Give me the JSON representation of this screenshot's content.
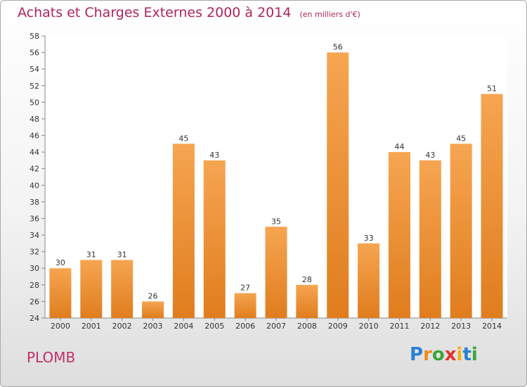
{
  "header": {
    "title": "Achats et Charges Externes 2000 à 2014",
    "subtitle": "(en milliers d'€)"
  },
  "footer": {
    "commune": "PLOMB",
    "brand": "Proxiti"
  },
  "colors": {
    "bar_top": "#f6a551",
    "bar_bottom": "#e07d1e",
    "title": "#b0245a"
  },
  "chart_data": {
    "type": "bar",
    "title": "Achats et Charges Externes 2000 à 2014",
    "subtitle": "(en milliers d'€)",
    "xlabel": "",
    "ylabel": "",
    "categories": [
      "2000",
      "2001",
      "2002",
      "2003",
      "2004",
      "2005",
      "2006",
      "2007",
      "2008",
      "2009",
      "2010",
      "2011",
      "2012",
      "2013",
      "2014"
    ],
    "values": [
      30,
      31,
      31,
      26,
      45,
      43,
      27,
      35,
      28,
      56,
      33,
      44,
      43,
      45,
      51
    ],
    "ylim": [
      24,
      58
    ],
    "ytick_step": 2,
    "grid": false,
    "data_labels": true,
    "legend": "none"
  }
}
